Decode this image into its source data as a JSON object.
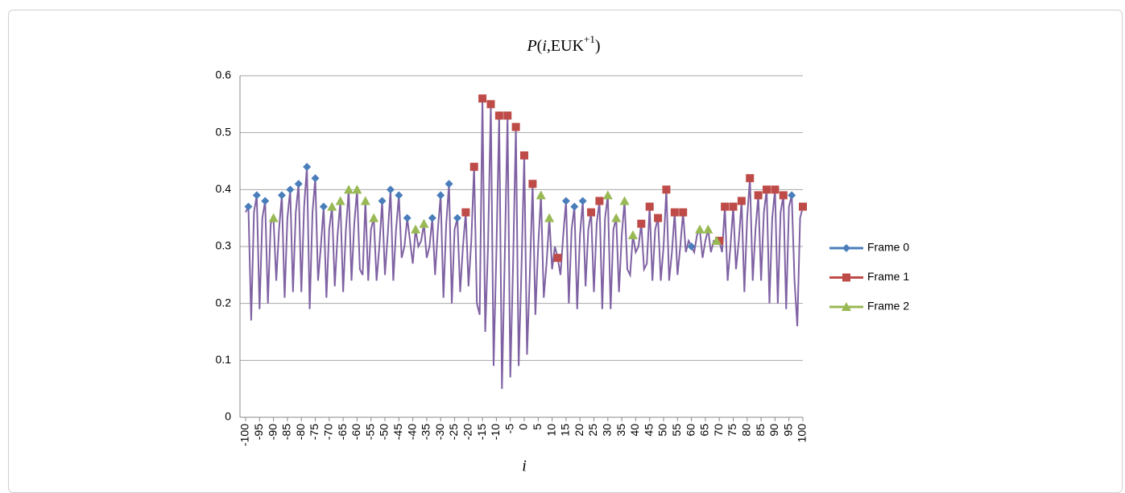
{
  "chart_data": {
    "type": "line",
    "title": [
      "P",
      "(",
      "i",
      ",EUK",
      "+1",
      ")"
    ],
    "x_label": "i",
    "xlim": [
      -100,
      100
    ],
    "xticks": [
      -100,
      -95,
      -90,
      -85,
      -80,
      -75,
      -70,
      -65,
      -60,
      -55,
      -50,
      -45,
      -40,
      -35,
      -30,
      -25,
      -20,
      -15,
      -10,
      -5,
      0,
      5,
      10,
      15,
      20,
      25,
      30,
      35,
      40,
      45,
      50,
      55,
      60,
      65,
      70,
      75,
      80,
      85,
      90,
      95,
      100
    ],
    "ylim": [
      0,
      0.6
    ],
    "yticks": [
      0,
      0.1,
      0.2,
      0.3,
      0.4,
      0.5,
      0.6
    ],
    "grid": true,
    "legend": "right",
    "x": [
      -100,
      -99,
      -98,
      -97,
      -96,
      -95,
      -94,
      -93,
      -92,
      -91,
      -90,
      -89,
      -88,
      -87,
      -86,
      -85,
      -84,
      -83,
      -82,
      -81,
      -80,
      -79,
      -78,
      -77,
      -76,
      -75,
      -74,
      -73,
      -72,
      -71,
      -70,
      -69,
      -68,
      -67,
      -66,
      -65,
      -64,
      -63,
      -62,
      -61,
      -60,
      -59,
      -58,
      -57,
      -56,
      -55,
      -54,
      -53,
      -52,
      -51,
      -50,
      -49,
      -48,
      -47,
      -46,
      -45,
      -44,
      -43,
      -42,
      -41,
      -40,
      -39,
      -38,
      -37,
      -36,
      -35,
      -34,
      -33,
      -32,
      -31,
      -30,
      -29,
      -28,
      -27,
      -26,
      -25,
      -24,
      -23,
      -22,
      -21,
      -20,
      -19,
      -18,
      -17,
      -16,
      -15,
      -14,
      -13,
      -12,
      -11,
      -10,
      -9,
      -8,
      -7,
      -6,
      -5,
      -4,
      -3,
      -2,
      -1,
      0,
      1,
      2,
      3,
      4,
      5,
      6,
      7,
      8,
      9,
      10,
      11,
      12,
      13,
      14,
      15,
      16,
      17,
      18,
      19,
      20,
      21,
      22,
      23,
      24,
      25,
      26,
      27,
      28,
      29,
      30,
      31,
      32,
      33,
      34,
      35,
      36,
      37,
      38,
      39,
      40,
      41,
      42,
      43,
      44,
      45,
      46,
      47,
      48,
      49,
      50,
      51,
      52,
      53,
      54,
      55,
      56,
      57,
      58,
      59,
      60,
      61,
      62,
      63,
      64,
      65,
      66,
      67,
      68,
      69,
      70,
      71,
      72,
      73,
      74,
      75,
      76,
      77,
      78,
      79,
      80,
      81,
      82,
      83,
      84,
      85,
      86,
      87,
      88,
      89,
      90,
      91,
      92,
      93,
      94,
      95,
      96,
      97,
      98,
      99,
      100
    ],
    "series": [
      {
        "name": "Frame 0",
        "color": "#4a7ebb",
        "marker": "diamond",
        "x": [
          -99,
          -96,
          -93,
          -87,
          -84,
          -81,
          -78,
          -75,
          -72,
          -51,
          -48,
          -45,
          -42,
          -33,
          -30,
          -27,
          -24,
          15,
          18,
          21,
          60,
          96
        ],
        "values": [
          0.37,
          0.39,
          0.38,
          0.39,
          0.4,
          0.41,
          0.44,
          0.42,
          0.37,
          0.38,
          0.4,
          0.39,
          0.35,
          0.35,
          0.39,
          0.41,
          0.35,
          0.38,
          0.37,
          0.38,
          0.3,
          0.39
        ]
      },
      {
        "name": "Frame 1",
        "color": "#be4b48",
        "marker": "square",
        "x": [
          -21,
          -18,
          -15,
          -12,
          -9,
          -6,
          -3,
          0,
          3,
          12,
          24,
          27,
          42,
          45,
          48,
          51,
          54,
          57,
          70,
          72,
          75,
          78,
          81,
          84,
          87,
          90,
          93,
          100
        ],
        "values": [
          0.36,
          0.44,
          0.56,
          0.55,
          0.53,
          0.53,
          0.51,
          0.46,
          0.41,
          0.28,
          0.36,
          0.38,
          0.34,
          0.37,
          0.35,
          0.4,
          0.36,
          0.36,
          0.31,
          0.37,
          0.37,
          0.38,
          0.42,
          0.39,
          0.4,
          0.4,
          0.39,
          0.37
        ]
      },
      {
        "name": "Frame 2",
        "color": "#98b954",
        "marker": "triangle",
        "x": [
          -90,
          -69,
          -66,
          -63,
          -60,
          -57,
          -54,
          -39,
          -36,
          6,
          9,
          30,
          33,
          36,
          39,
          63,
          66,
          69
        ],
        "values": [
          0.35,
          0.37,
          0.38,
          0.4,
          0.4,
          0.38,
          0.35,
          0.33,
          0.34,
          0.39,
          0.35,
          0.39,
          0.35,
          0.38,
          0.32,
          0.33,
          0.33,
          0.31
        ]
      },
      {
        "color": "#7f62a3",
        "values": [
          0.36,
          0.37,
          0.17,
          0.36,
          0.39,
          0.19,
          0.35,
          0.38,
          0.2,
          0.34,
          0.35,
          0.24,
          0.33,
          0.39,
          0.21,
          0.35,
          0.4,
          0.22,
          0.36,
          0.41,
          0.22,
          0.37,
          0.44,
          0.19,
          0.36,
          0.42,
          0.24,
          0.3,
          0.37,
          0.21,
          0.33,
          0.37,
          0.23,
          0.32,
          0.38,
          0.22,
          0.33,
          0.4,
          0.24,
          0.34,
          0.4,
          0.26,
          0.25,
          0.38,
          0.24,
          0.33,
          0.35,
          0.24,
          0.3,
          0.38,
          0.25,
          0.32,
          0.4,
          0.24,
          0.33,
          0.39,
          0.28,
          0.3,
          0.35,
          0.31,
          0.27,
          0.33,
          0.3,
          0.31,
          0.34,
          0.28,
          0.3,
          0.35,
          0.25,
          0.33,
          0.39,
          0.21,
          0.34,
          0.41,
          0.2,
          0.33,
          0.35,
          0.22,
          0.3,
          0.36,
          0.23,
          0.31,
          0.44,
          0.2,
          0.18,
          0.56,
          0.15,
          0.3,
          0.55,
          0.09,
          0.29,
          0.53,
          0.05,
          0.28,
          0.53,
          0.07,
          0.27,
          0.51,
          0.09,
          0.26,
          0.46,
          0.11,
          0.25,
          0.41,
          0.18,
          0.3,
          0.39,
          0.21,
          0.27,
          0.35,
          0.26,
          0.3,
          0.28,
          0.25,
          0.32,
          0.38,
          0.2,
          0.33,
          0.37,
          0.19,
          0.32,
          0.38,
          0.23,
          0.33,
          0.36,
          0.22,
          0.34,
          0.38,
          0.19,
          0.35,
          0.39,
          0.19,
          0.33,
          0.35,
          0.22,
          0.32,
          0.38,
          0.26,
          0.25,
          0.32,
          0.29,
          0.3,
          0.34,
          0.26,
          0.27,
          0.37,
          0.24,
          0.33,
          0.35,
          0.24,
          0.3,
          0.4,
          0.24,
          0.29,
          0.36,
          0.25,
          0.3,
          0.36,
          0.29,
          0.31,
          0.3,
          0.29,
          0.32,
          0.33,
          0.28,
          0.31,
          0.33,
          0.29,
          0.31,
          0.31,
          0.31,
          0.29,
          0.37,
          0.24,
          0.3,
          0.37,
          0.26,
          0.31,
          0.38,
          0.22,
          0.35,
          0.42,
          0.24,
          0.33,
          0.39,
          0.24,
          0.36,
          0.4,
          0.2,
          0.35,
          0.4,
          0.2,
          0.36,
          0.39,
          0.19,
          0.37,
          0.39,
          0.24,
          0.16,
          0.35,
          0.37
        ]
      }
    ]
  }
}
